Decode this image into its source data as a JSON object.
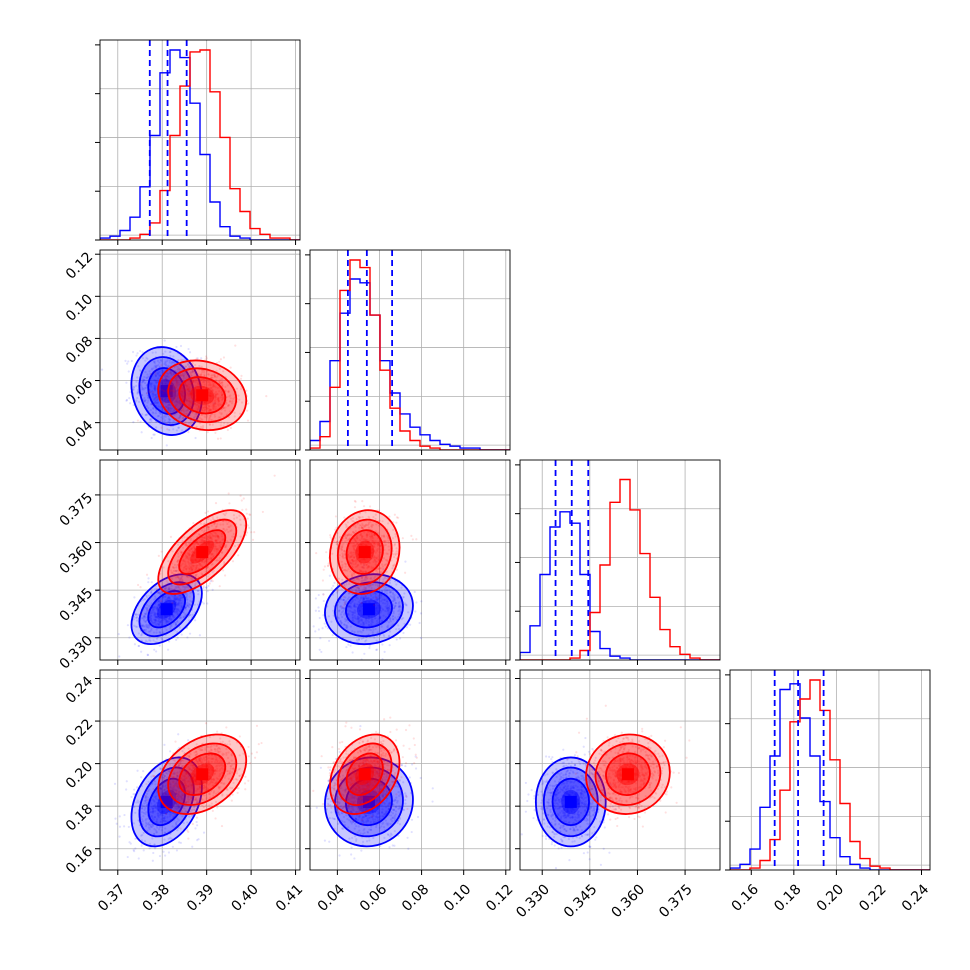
{
  "chart_data": {
    "type": "corner",
    "colors": {
      "set_a": "#0000ff",
      "set_b": "#ff0000",
      "grid": "#b0b0b0"
    },
    "grid": true,
    "parameters": [
      {
        "range": [
          0.366,
          0.411
        ],
        "ticks": [
          "0.37",
          "0.38",
          "0.39",
          "0.40",
          "0.41"
        ],
        "tick_values": [
          0.37,
          0.38,
          0.39,
          0.4,
          0.41
        ]
      },
      {
        "range": [
          0.027,
          0.122
        ],
        "ticks": [
          "0.04",
          "0.06",
          "0.08",
          "0.10",
          "0.12"
        ],
        "tick_values": [
          0.04,
          0.06,
          0.08,
          0.1,
          0.12
        ]
      },
      {
        "range": [
          0.323,
          0.386
        ],
        "ticks": [
          "0.330",
          "0.345",
          "0.360",
          "0.375"
        ],
        "tick_values": [
          0.33,
          0.345,
          0.36,
          0.375
        ]
      },
      {
        "range": [
          0.15,
          0.244
        ],
        "ticks": [
          "0.16",
          "0.18",
          "0.20",
          "0.22",
          "0.24"
        ],
        "tick_values": [
          0.16,
          0.18,
          0.2,
          0.22,
          0.24
        ]
      }
    ],
    "series": [
      {
        "color": "blue",
        "means": [
          0.381,
          0.055,
          0.339,
          0.182
        ],
        "sigmas": [
          0.0036,
          0.0095,
          0.005,
          0.0095
        ],
        "quantile_lines": [
          [
            0.3772,
            0.3812,
            0.3855
          ],
          [
            0.045,
            0.054,
            0.066
          ],
          [
            0.3342,
            0.3393,
            0.3445
          ],
          [
            0.171,
            0.182,
            0.194
          ]
        ],
        "correlations": [
          [
            0,
            1,
            -0.15
          ],
          [
            0,
            2,
            0.45
          ],
          [
            0,
            3,
            0.35
          ],
          [
            1,
            2,
            0.1
          ],
          [
            1,
            3,
            0.05
          ],
          [
            2,
            3,
            0.0
          ]
        ]
      },
      {
        "color": "red",
        "means": [
          0.389,
          0.053,
          0.357,
          0.195
        ],
        "sigmas": [
          0.0045,
          0.0075,
          0.006,
          0.0085
        ],
        "quantile_lines": [],
        "correlations": [
          [
            0,
            1,
            -0.15
          ],
          [
            0,
            2,
            0.65
          ],
          [
            0,
            3,
            0.35
          ],
          [
            1,
            2,
            0.1
          ],
          [
            1,
            3,
            0.3
          ],
          [
            2,
            3,
            0.05
          ]
        ]
      }
    ],
    "histograms": [
      {
        "series": "blue",
        "param": 0,
        "values": [
          0.01,
          0.02,
          0.05,
          0.12,
          0.28,
          0.55,
          0.88,
          1.0,
          0.96,
          0.72,
          0.45,
          0.2,
          0.07,
          0.02,
          0.01,
          0.0,
          0.0,
          0.0,
          0.0,
          0.0
        ]
      },
      {
        "series": "red",
        "param": 0,
        "values": [
          0.0,
          0.0,
          0.0,
          0.01,
          0.03,
          0.09,
          0.26,
          0.55,
          0.81,
          0.99,
          1.0,
          0.78,
          0.54,
          0.27,
          0.15,
          0.06,
          0.03,
          0.01,
          0.01,
          0.0
        ]
      },
      {
        "series": "blue",
        "param": 1,
        "values": [
          0.05,
          0.15,
          0.47,
          0.72,
          0.9,
          0.88,
          0.71,
          0.47,
          0.3,
          0.19,
          0.12,
          0.08,
          0.05,
          0.03,
          0.02,
          0.01,
          0.01,
          0.0,
          0.0,
          0.0
        ]
      },
      {
        "series": "red",
        "param": 1,
        "values": [
          0.01,
          0.07,
          0.33,
          0.84,
          1.0,
          0.96,
          0.71,
          0.42,
          0.22,
          0.1,
          0.05,
          0.02,
          0.01,
          0.0,
          0.0,
          0.0,
          0.0,
          0.0,
          0.0,
          0.0
        ]
      },
      {
        "series": "blue",
        "param": 2,
        "values": [
          0.04,
          0.18,
          0.45,
          0.7,
          0.78,
          0.72,
          0.45,
          0.15,
          0.06,
          0.02,
          0.01,
          0.0,
          0.0,
          0.0,
          0.0,
          0.0,
          0.0,
          0.0,
          0.0,
          0.0
        ]
      },
      {
        "series": "red",
        "param": 2,
        "values": [
          0.0,
          0.0,
          0.0,
          0.0,
          0.0,
          0.01,
          0.05,
          0.25,
          0.5,
          0.83,
          0.95,
          0.79,
          0.56,
          0.33,
          0.16,
          0.07,
          0.03,
          0.01,
          0.0,
          0.0
        ]
      },
      {
        "series": "blue",
        "param": 3,
        "values": [
          0.01,
          0.03,
          0.11,
          0.33,
          0.6,
          0.95,
          0.98,
          0.8,
          0.6,
          0.36,
          0.17,
          0.07,
          0.03,
          0.01,
          0.0,
          0.0,
          0.0,
          0.0,
          0.0,
          0.0
        ]
      },
      {
        "series": "red",
        "param": 3,
        "values": [
          0.0,
          0.0,
          0.01,
          0.05,
          0.16,
          0.42,
          0.78,
          0.9,
          1.0,
          0.84,
          0.58,
          0.35,
          0.15,
          0.06,
          0.02,
          0.01,
          0.0,
          0.0,
          0.0,
          0.0
        ]
      }
    ]
  }
}
